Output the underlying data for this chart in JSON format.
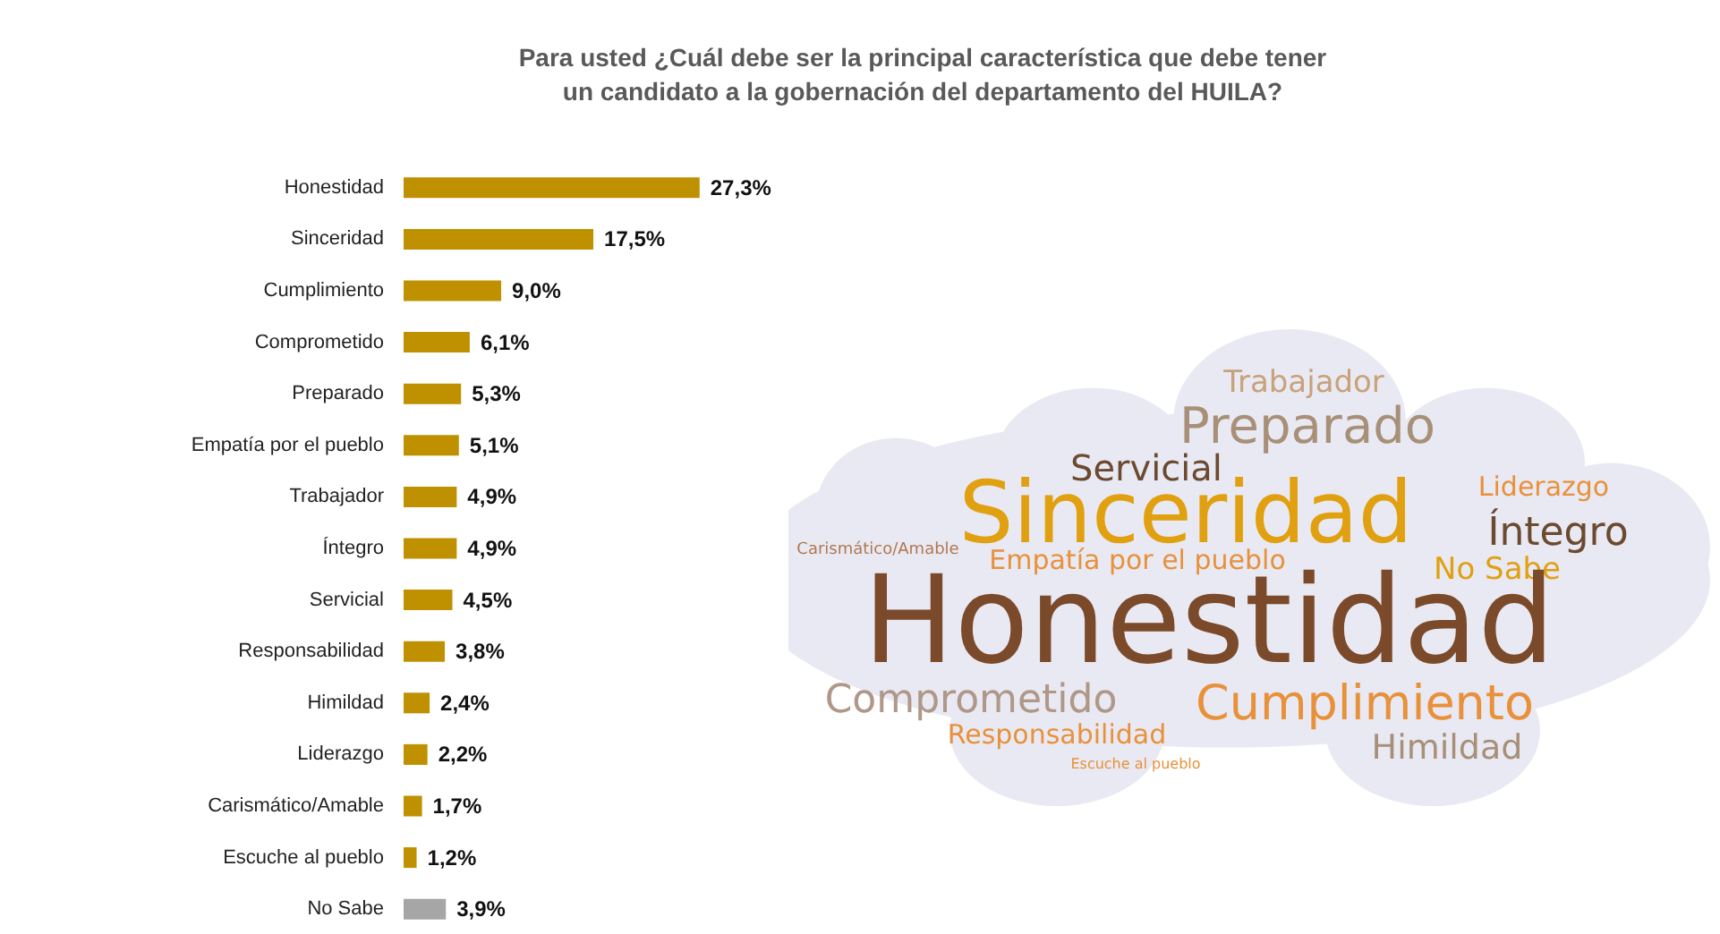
{
  "chart_data": [
    {
      "type": "bar",
      "orientation": "horizontal",
      "title": "Para usted ¿Cuál debe ser la principal característica que debe tener\nun candidato a la gobernación del departamento del HUILA?",
      "categories": [
        "Honestidad",
        "Sinceridad",
        "Cumplimiento",
        "Comprometido",
        "Preparado",
        "Empatía por el pueblo",
        "Trabajador",
        "Íntegro",
        "Servicial",
        "Responsabilidad",
        "Himildad",
        "Liderazgo",
        "Carismático/Amable",
        "Escuche al pueblo",
        "No Sabe"
      ],
      "values": [
        27.3,
        17.5,
        9.0,
        6.1,
        5.3,
        5.1,
        4.9,
        4.9,
        4.5,
        3.8,
        2.4,
        2.2,
        1.7,
        1.2,
        3.9
      ],
      "colors": [
        "#bf9000",
        "#bf9000",
        "#bf9000",
        "#bf9000",
        "#bf9000",
        "#bf9000",
        "#bf9000",
        "#bf9000",
        "#bf9000",
        "#bf9000",
        "#bf9000",
        "#bf9000",
        "#bf9000",
        "#bf9000",
        "#a6a6a6"
      ],
      "value_labels": [
        "27,3%",
        "17,5%",
        "9,0%",
        "6,1%",
        "5,3%",
        "5,1%",
        "4,9%",
        "4,9%",
        "4,5%",
        "3,8%",
        "2,4%",
        "2,2%",
        "1,7%",
        "1,2%",
        "3,9%"
      ]
    },
    {
      "type": "other",
      "annotations": [
        "Trabajador",
        "Preparado",
        "Servicial",
        "Liderazgo",
        "Sinceridad",
        "Íntegro",
        "Carismático/Amable",
        "Empatía por el pueblo",
        "No Sabe",
        "Honestidad",
        "Comprometido",
        "Cumplimiento",
        "Responsabilidad",
        "Himildad",
        "Escuche al pueblo"
      ]
    }
  ]
}
